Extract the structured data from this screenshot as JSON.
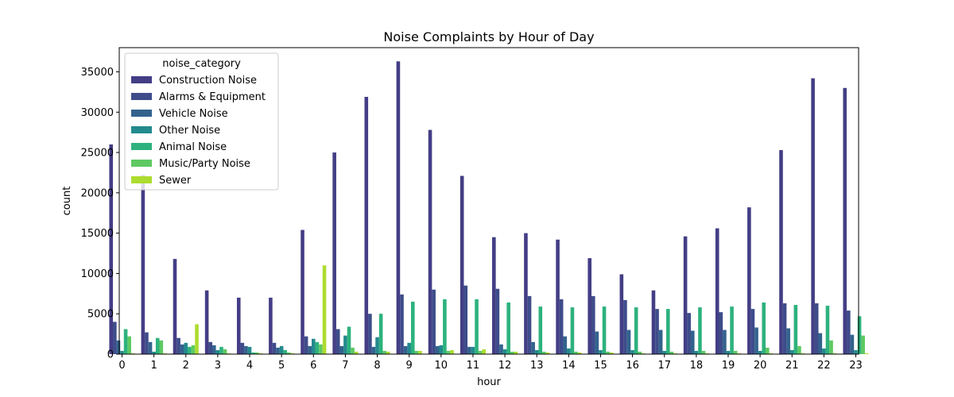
{
  "chart_data": {
    "type": "bar",
    "title": "Noise Complaints by Hour of Day",
    "xlabel": "hour",
    "ylabel": "count",
    "ylim": [
      0,
      38000
    ],
    "yticks": [
      0,
      5000,
      10000,
      15000,
      20000,
      25000,
      30000,
      35000
    ],
    "categories": [
      "0",
      "1",
      "2",
      "3",
      "4",
      "5",
      "6",
      "7",
      "8",
      "9",
      "10",
      "11",
      "12",
      "13",
      "14",
      "15",
      "16",
      "17",
      "18",
      "19",
      "20",
      "21",
      "22",
      "23"
    ],
    "legend": {
      "title": "noise_category",
      "placement": "upper-left"
    },
    "series": [
      {
        "name": "Construction Noise",
        "color": "#433e85",
        "values": [
          26000,
          22200,
          11800,
          7900,
          7000,
          7000,
          15400,
          25000,
          31900,
          36300,
          27800,
          22100,
          14500,
          15000,
          14200,
          11900,
          9900,
          7900,
          14600,
          15600,
          18200,
          25300,
          34200,
          33000
        ]
      },
      {
        "name": "Alarms & Equipment",
        "color": "#3e4c8a",
        "values": [
          4000,
          2700,
          2000,
          1500,
          1400,
          1400,
          2200,
          3100,
          5000,
          7400,
          8000,
          8500,
          8100,
          7200,
          6800,
          7200,
          6700,
          5600,
          5100,
          5200,
          5600,
          6300,
          6300,
          5400
        ]
      },
      {
        "name": "Vehicle Noise",
        "color": "#33638d",
        "values": [
          1700,
          1500,
          1200,
          1100,
          1000,
          800,
          1000,
          1000,
          900,
          1000,
          1000,
          900,
          1200,
          1500,
          2200,
          2800,
          3000,
          3000,
          2900,
          3000,
          3300,
          3200,
          2600,
          2400
        ]
      },
      {
        "name": "Other Noise",
        "color": "#238a8d",
        "values": [
          400,
          300,
          1400,
          500,
          900,
          1000,
          1900,
          2300,
          2100,
          1400,
          1100,
          900,
          600,
          500,
          700,
          500,
          500,
          400,
          400,
          400,
          400,
          500,
          700,
          500
        ]
      },
      {
        "name": "Animal Noise",
        "color": "#2db27d",
        "values": [
          3100,
          2000,
          900,
          900,
          200,
          500,
          1500,
          3400,
          5000,
          6500,
          6800,
          6800,
          6400,
          5900,
          5800,
          5900,
          5800,
          5600,
          5800,
          5900,
          6400,
          6100,
          6000,
          4700
        ]
      },
      {
        "name": "Music/Party Noise",
        "color": "#5ec962",
        "values": [
          2200,
          1700,
          1100,
          600,
          200,
          200,
          1200,
          800,
          400,
          400,
          400,
          400,
          300,
          300,
          300,
          300,
          300,
          300,
          400,
          400,
          800,
          1000,
          1700,
          2300
        ]
      },
      {
        "name": "Sewer",
        "color": "#addc30",
        "values": [
          100,
          100,
          3700,
          100,
          100,
          100,
          11000,
          300,
          300,
          400,
          500,
          600,
          300,
          200,
          200,
          200,
          100,
          100,
          100,
          100,
          100,
          100,
          100,
          100
        ]
      }
    ]
  }
}
